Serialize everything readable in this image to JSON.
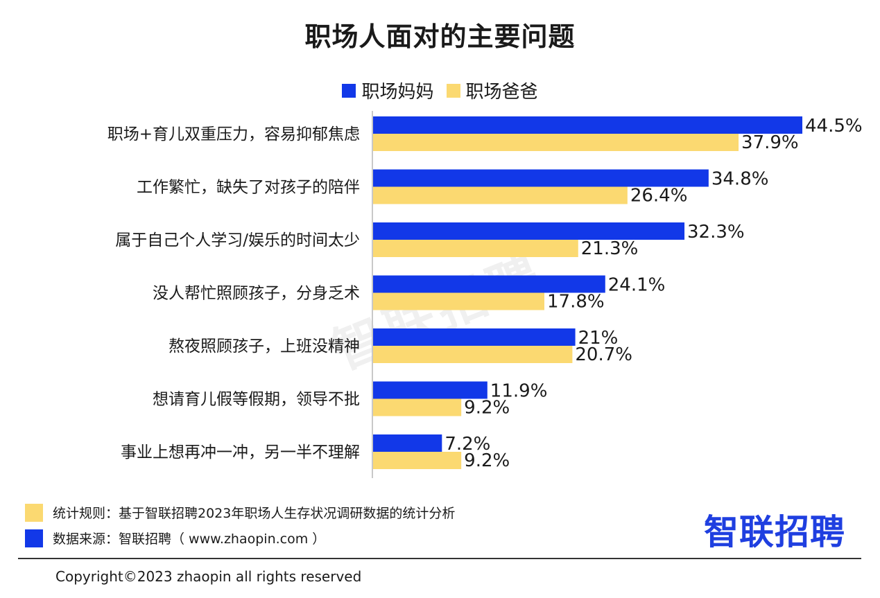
{
  "chart_data": {
    "type": "bar",
    "orientation": "horizontal",
    "title": "职场人面对的主要问题",
    "categories": [
      "职场+育儿双重压力，容易抑郁焦虑",
      "工作繁忙，缺失了对孩子的陪伴",
      "属于自己个人学习/娱乐的时间太少",
      "没人帮忙照顾孩子，分身乏术",
      "熬夜照顾孩子，上班没精神",
      "想请育儿假等假期，领导不批",
      "事业上想再冲一冲，另一半不理解"
    ],
    "series": [
      {
        "name": "职场妈妈",
        "color": "#1238e8",
        "values": [
          44.5,
          34.8,
          32.3,
          24.1,
          21,
          11.9,
          7.2
        ],
        "labels": [
          "44.5%",
          "34.8%",
          "32.3%",
          "24.1%",
          "21%",
          "11.9%",
          "7.2%"
        ]
      },
      {
        "name": "职场爸爸",
        "color": "#fbd971",
        "values": [
          37.9,
          26.4,
          21.3,
          17.8,
          20.7,
          9.2,
          9.2
        ],
        "labels": [
          "37.9%",
          "26.4%",
          "21.3%",
          "17.8%",
          "20.7%",
          "9.2%",
          "9.2%"
        ]
      }
    ],
    "xlim": [
      0,
      44.5
    ],
    "grid": false,
    "legend": "top-center"
  },
  "watermark": "智联招聘",
  "footnotes": [
    {
      "text": "统计规则：基于智联招聘2023年职场人生存状况调研数据的统计分析",
      "color": "#fbd971"
    },
    {
      "text": "数据来源：智联招聘（ www.zhaopin.com ）",
      "color": "#1238e8"
    }
  ],
  "brand": "智联招聘",
  "copyright": "Copyright©2023 zhaopin all rights reserved"
}
